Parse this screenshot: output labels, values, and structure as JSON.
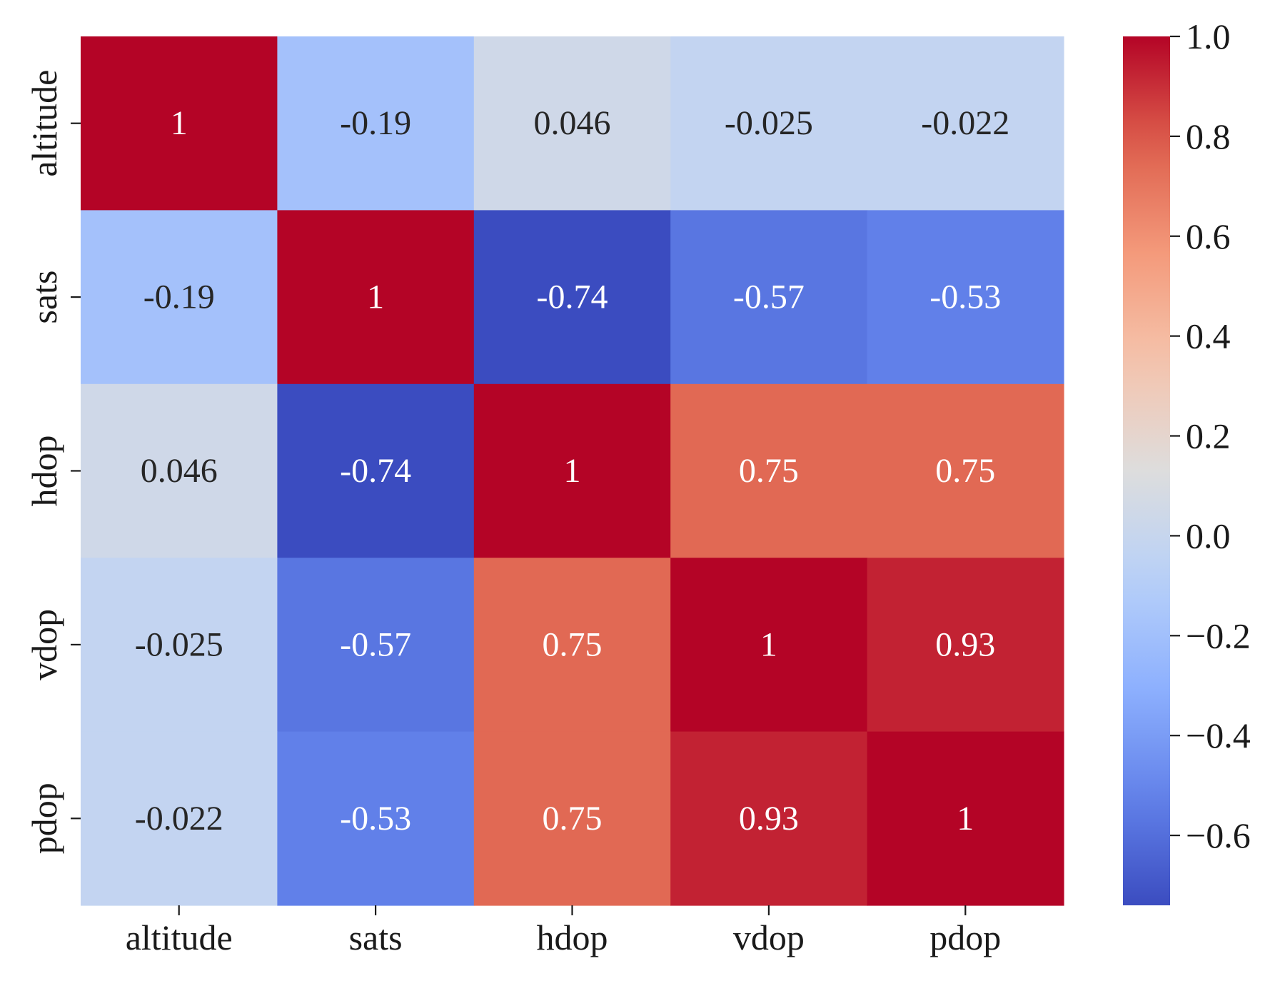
{
  "chart_data": {
    "type": "heatmap",
    "title": "",
    "xlabel": "",
    "ylabel": "",
    "x_categories": [
      "altitude",
      "sats",
      "hdop",
      "vdop",
      "pdop"
    ],
    "y_categories": [
      "altitude",
      "sats",
      "hdop",
      "vdop",
      "pdop"
    ],
    "values": [
      [
        1,
        -0.19,
        0.046,
        -0.025,
        -0.022
      ],
      [
        -0.19,
        1,
        -0.74,
        -0.57,
        -0.53
      ],
      [
        0.046,
        -0.74,
        1,
        0.75,
        0.75
      ],
      [
        -0.025,
        -0.57,
        0.75,
        1,
        0.93
      ],
      [
        -0.022,
        -0.53,
        0.75,
        0.93,
        1
      ]
    ],
    "annotations": [
      [
        "1",
        "-0.19",
        "0.046",
        "-0.025",
        "-0.022"
      ],
      [
        "-0.19",
        "1",
        "-0.74",
        "-0.57",
        "-0.53"
      ],
      [
        "0.046",
        "-0.74",
        "1",
        "0.75",
        "0.75"
      ],
      [
        "-0.025",
        "-0.57",
        "0.75",
        "1",
        "0.93"
      ],
      [
        "-0.022",
        "-0.53",
        "0.75",
        "0.93",
        "1"
      ]
    ],
    "colormap": "coolwarm",
    "color_range": [
      -0.74,
      1.0
    ],
    "colorbar": {
      "ticks": [
        1.0,
        0.8,
        0.6,
        0.4,
        0.2,
        0.0,
        -0.2,
        -0.4,
        -0.6
      ],
      "tick_labels": [
        "1.0",
        "0.8",
        "0.6",
        "0.4",
        "0.2",
        "0.0",
        "−0.2",
        "−0.4",
        "−0.6"
      ],
      "placement": "right"
    },
    "grid": false
  }
}
